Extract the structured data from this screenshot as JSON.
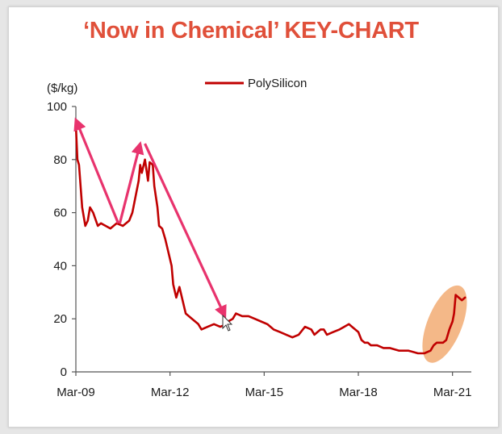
{
  "page": {
    "title": "‘Now in Chemical’ KEY-CHART"
  },
  "chart_data": {
    "type": "line",
    "title": "‘Now in Chemical’ KEY-CHART",
    "ylabel": "($/kg)",
    "xlabel": "",
    "ylim": [
      0,
      100
    ],
    "yticks": [
      0,
      20,
      40,
      60,
      80,
      100
    ],
    "xlim": [
      2009.0,
      2021.6
    ],
    "xticks": [
      {
        "label": "Mar-09",
        "x": 2009.0
      },
      {
        "label": "Mar-12",
        "x": 2012.0
      },
      {
        "label": "Mar-15",
        "x": 2015.0
      },
      {
        "label": "Mar-18",
        "x": 2018.0
      },
      {
        "label": "Mar-21",
        "x": 2021.0
      }
    ],
    "legend": {
      "position": "top-center"
    },
    "grid": false,
    "series": [
      {
        "name": "PolySilicon",
        "color": "#c00000",
        "x": [
          2009.0,
          2009.05,
          2009.1,
          2009.2,
          2009.3,
          2009.38,
          2009.45,
          2009.55,
          2009.7,
          2009.8,
          2009.95,
          2010.1,
          2010.3,
          2010.5,
          2010.7,
          2010.8,
          2010.9,
          2011.0,
          2011.05,
          2011.1,
          2011.2,
          2011.3,
          2011.35,
          2011.45,
          2011.5,
          2011.6,
          2011.65,
          2011.75,
          2011.85,
          2011.95,
          2012.05,
          2012.1,
          2012.2,
          2012.3,
          2012.5,
          2012.7,
          2012.9,
          2013.0,
          2013.2,
          2013.4,
          2013.6,
          2013.8,
          2013.85,
          2014.0,
          2014.1,
          2014.3,
          2014.5,
          2014.7,
          2014.9,
          2015.1,
          2015.3,
          2015.5,
          2015.7,
          2015.9,
          2016.1,
          2016.3,
          2016.5,
          2016.6,
          2016.7,
          2016.8,
          2016.9,
          2017.0,
          2017.2,
          2017.4,
          2017.55,
          2017.7,
          2017.8,
          2017.9,
          2018.0,
          2018.1,
          2018.2,
          2018.3,
          2018.4,
          2018.6,
          2018.8,
          2019.0,
          2019.3,
          2019.6,
          2019.9,
          2020.1,
          2020.3,
          2020.4,
          2020.5,
          2020.6,
          2020.7,
          2020.8,
          2020.9,
          2021.0,
          2021.05,
          2021.1,
          2021.2,
          2021.3,
          2021.4
        ],
        "values": [
          93,
          80,
          78,
          62,
          55,
          57,
          62,
          60,
          55,
          56,
          55,
          54,
          56,
          55,
          57,
          60,
          66,
          72,
          78,
          75,
          80,
          72,
          79,
          78,
          70,
          62,
          55,
          54,
          50,
          45,
          40,
          33,
          28,
          32,
          22,
          20,
          18,
          16,
          17,
          18,
          17,
          18,
          19,
          20,
          22,
          21,
          21,
          20,
          19,
          18,
          16,
          15,
          14,
          13,
          14,
          17,
          16,
          14,
          15,
          16,
          16,
          14,
          15,
          16,
          17,
          18,
          17,
          16,
          15,
          12,
          11,
          11,
          10,
          10,
          9,
          9,
          8,
          8,
          7,
          7,
          8,
          10,
          11,
          11,
          11,
          12,
          16,
          19,
          22,
          29,
          28,
          27,
          28
        ]
      }
    ],
    "annotations": [
      {
        "type": "arrow",
        "color": "#e8336d",
        "from": [
          2010.35,
          56
        ],
        "to": [
          2009.0,
          95
        ]
      },
      {
        "type": "arrow",
        "color": "#e8336d",
        "from": [
          2010.4,
          56
        ],
        "to": [
          2011.05,
          86
        ]
      },
      {
        "type": "arrow",
        "color": "#e8336d",
        "from": [
          2011.2,
          86
        ],
        "to": [
          2013.75,
          21
        ]
      },
      {
        "type": "highlight-ellipse",
        "color": "#f0a060",
        "center": [
          2020.75,
          18
        ],
        "rx_years": 0.55,
        "ry_value": 15.5
      }
    ]
  }
}
